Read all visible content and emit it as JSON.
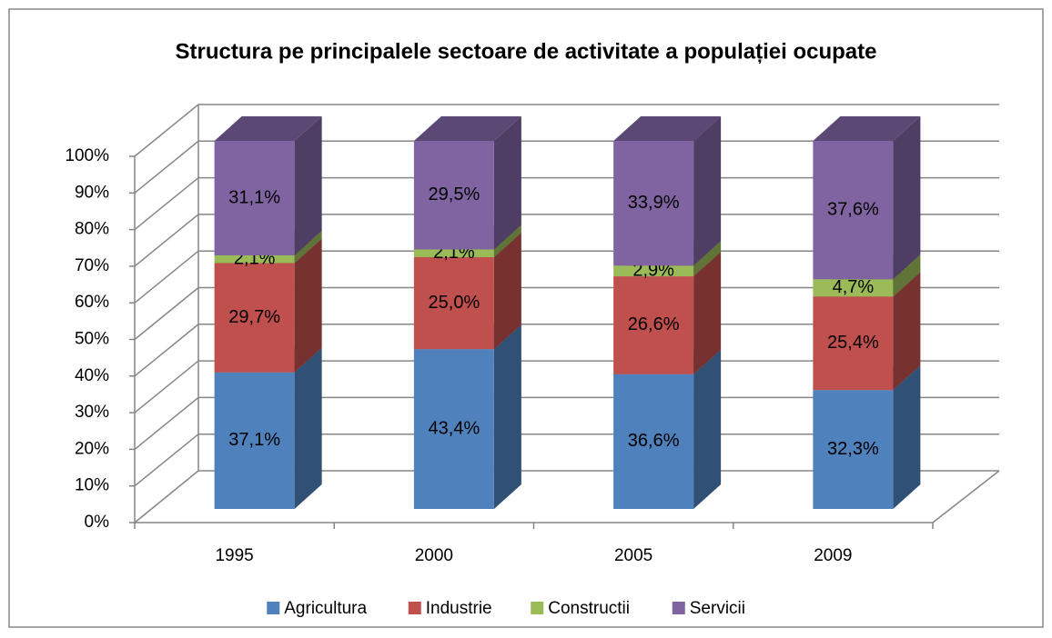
{
  "chart_data": {
    "type": "bar3d_stacked",
    "title": "Structura pe principalele sectoare de activitate a populației ocupate",
    "categories": [
      "1995",
      "2000",
      "2005",
      "2009"
    ],
    "series": [
      {
        "name": "Agricultura",
        "color": "#4f81bd",
        "values": [
          37.1,
          43.4,
          36.6,
          32.3
        ],
        "value_labels": [
          "37,1%",
          "43,4%",
          "36,6%",
          "32,3%"
        ]
      },
      {
        "name": "Industrie",
        "color": "#c0504d",
        "values": [
          29.7,
          25.0,
          26.6,
          25.4
        ],
        "value_labels": [
          "29,7%",
          "25,0%",
          "26,6%",
          "25,4%"
        ]
      },
      {
        "name": "Constructii",
        "color": "#9bbb59",
        "values": [
          2.1,
          2.1,
          2.9,
          4.7
        ],
        "value_labels": [
          "2,1%",
          "2,1%",
          "2,9%",
          "4,7%"
        ]
      },
      {
        "name": "Servicii",
        "color": "#8064a2",
        "values": [
          31.1,
          29.5,
          33.9,
          37.6
        ],
        "value_labels": [
          "31,1%",
          "29,5%",
          "33,9%",
          "37,6%"
        ]
      }
    ],
    "ylim": [
      0,
      100
    ],
    "yticks": [
      {
        "value": 0,
        "label": "0%"
      },
      {
        "value": 10,
        "label": "10%"
      },
      {
        "value": 20,
        "label": "20%"
      },
      {
        "value": 30,
        "label": "30%"
      },
      {
        "value": 40,
        "label": "40%"
      },
      {
        "value": 50,
        "label": "50%"
      },
      {
        "value": 60,
        "label": "60%"
      },
      {
        "value": 70,
        "label": "70%"
      },
      {
        "value": 80,
        "label": "80%"
      },
      {
        "value": 90,
        "label": "90%"
      },
      {
        "value": 100,
        "label": "100%"
      }
    ],
    "grid": true,
    "legend": "bottom"
  }
}
